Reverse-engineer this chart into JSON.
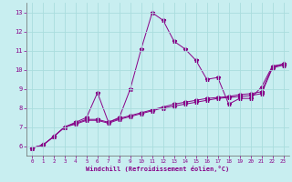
{
  "xlabel": "Windchill (Refroidissement éolien,°C)",
  "background_color": "#c8eef0",
  "grid_color": "#aadddd",
  "line_color": "#880088",
  "xlim": [
    -0.5,
    23.5
  ],
  "ylim": [
    5.5,
    13.5
  ],
  "xticks": [
    0,
    1,
    2,
    3,
    4,
    5,
    6,
    7,
    8,
    9,
    10,
    11,
    12,
    13,
    14,
    15,
    16,
    17,
    18,
    19,
    20,
    21,
    22,
    23
  ],
  "yticks": [
    6,
    7,
    8,
    9,
    10,
    11,
    12,
    13
  ],
  "s1_x": [
    0,
    1,
    2,
    3,
    4,
    5,
    6,
    7,
    8,
    9,
    10,
    11,
    12,
    13,
    14,
    15,
    16,
    17,
    18,
    19,
    20,
    21,
    22,
    23
  ],
  "s1_y": [
    5.9,
    6.05,
    6.5,
    7.0,
    7.25,
    7.5,
    8.8,
    7.25,
    7.5,
    9.0,
    11.1,
    13.0,
    12.6,
    11.5,
    11.1,
    10.5,
    9.5,
    9.6,
    8.2,
    8.5,
    8.5,
    9.1,
    10.2,
    10.3
  ],
  "s2_x": [
    0,
    1,
    2,
    3,
    4,
    5,
    6,
    7,
    8,
    9,
    10,
    11,
    12,
    13,
    14,
    15,
    16,
    17,
    18,
    19,
    20,
    21,
    22,
    23
  ],
  "s2_y": [
    5.9,
    6.05,
    6.5,
    7.0,
    7.2,
    7.4,
    7.4,
    7.25,
    7.45,
    7.6,
    7.75,
    7.9,
    8.05,
    8.2,
    8.3,
    8.4,
    8.5,
    8.55,
    8.6,
    8.7,
    8.75,
    8.85,
    10.15,
    10.3
  ],
  "s3_x": [
    0,
    1,
    2,
    3,
    4,
    5,
    6,
    7,
    8,
    9,
    10,
    11,
    12,
    13,
    14,
    15,
    16,
    17,
    18,
    19,
    20,
    21,
    22,
    23
  ],
  "s3_y": [
    5.9,
    6.05,
    6.5,
    7.0,
    7.15,
    7.35,
    7.35,
    7.2,
    7.4,
    7.55,
    7.7,
    7.85,
    8.0,
    8.1,
    8.2,
    8.3,
    8.4,
    8.5,
    8.55,
    8.6,
    8.65,
    8.75,
    10.1,
    10.25
  ]
}
